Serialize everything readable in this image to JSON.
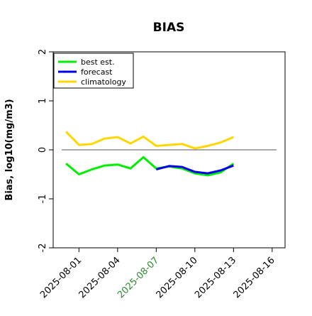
{
  "chart_data": {
    "type": "line",
    "title": "BIAS",
    "xlabel": "",
    "ylabel": "Bias, log10(mg/m3)",
    "ylim": [
      -2,
      2
    ],
    "yticks": [
      -2,
      -1,
      0,
      1,
      2
    ],
    "ytick_labels": [
      "-2",
      "-1",
      "0",
      "1",
      "2"
    ],
    "xlim": [
      "2025-07-30",
      "2025-08-17"
    ],
    "xticks": [
      "2025-08-01",
      "2025-08-04",
      "2025-08-07",
      "2025-08-10",
      "2025-08-13",
      "2025-08-16"
    ],
    "xtick_labels": [
      "2025-08-01",
      "2025-08-04",
      "2025-08-07",
      "2025-08-10",
      "2025-08-13",
      "2025-08-16"
    ],
    "xtick_colors": [
      "#000000",
      "#000000",
      "#2e8b2e",
      "#000000",
      "#000000",
      "#000000"
    ],
    "reference_line": 0,
    "grid": false,
    "legend_position": "top-left",
    "x": [
      "2025-07-31",
      "2025-08-01",
      "2025-08-02",
      "2025-08-03",
      "2025-08-04",
      "2025-08-05",
      "2025-08-06",
      "2025-08-07",
      "2025-08-08",
      "2025-08-09",
      "2025-08-10",
      "2025-08-11",
      "2025-08-12",
      "2025-08-13"
    ],
    "series": [
      {
        "name": "best est.",
        "color": "#00ee00",
        "values": [
          -0.28,
          -0.5,
          -0.4,
          -0.32,
          -0.3,
          -0.38,
          -0.15,
          -0.38,
          -0.34,
          -0.38,
          -0.48,
          -0.52,
          -0.46,
          -0.28
        ]
      },
      {
        "name": "forecast",
        "color": "#0000ee",
        "values": [
          null,
          null,
          null,
          null,
          null,
          null,
          null,
          -0.4,
          -0.33,
          -0.35,
          -0.45,
          -0.48,
          -0.42,
          -0.32
        ]
      },
      {
        "name": "climatology",
        "color": "#ffd700",
        "values": [
          0.37,
          0.1,
          0.12,
          0.23,
          0.26,
          0.13,
          0.27,
          0.08,
          0.1,
          0.12,
          0.03,
          0.08,
          0.15,
          0.26
        ]
      }
    ]
  }
}
